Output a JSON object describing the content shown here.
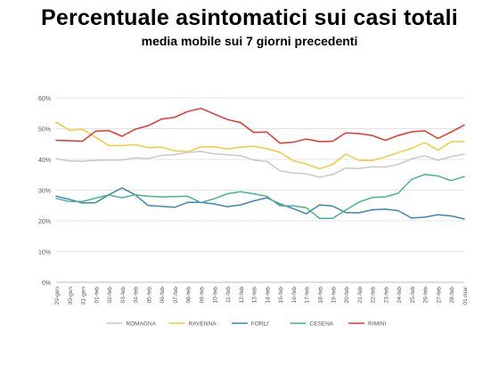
{
  "page": {
    "title": "Percentuale asintomatici sui casi totali",
    "subtitle": "media mobile sui 7 giorni precedenti"
  },
  "chart_data": {
    "type": "line",
    "title": "Percentuale asintomatici sui casi totali",
    "subtitle": "media mobile sui 7 giorni precedenti",
    "xlabel": "",
    "ylabel": "",
    "ylim": [
      0,
      60
    ],
    "yticks": [
      "0%",
      "10%",
      "20%",
      "30%",
      "40%",
      "50%",
      "60%"
    ],
    "grid": true,
    "legend_position": "bottom",
    "x": [
      "29-gen",
      "30-gen",
      "31-gen",
      "01-feb",
      "02-feb",
      "03-feb",
      "04-feb",
      "05-feb",
      "06-feb",
      "07-feb",
      "08-feb",
      "09-feb",
      "10-feb",
      "11-feb",
      "12-feb",
      "13-feb",
      "14-feb",
      "15-feb",
      "16-feb",
      "17-feb",
      "18-feb",
      "19-feb",
      "20-feb",
      "21-feb",
      "22-feb",
      "23-feb",
      "24-feb",
      "25-feb",
      "26-feb",
      "27-feb",
      "28-feb",
      "01-mar"
    ],
    "series": [
      {
        "name": "ROMAGNA",
        "color": "#c8c8c8",
        "values": [
          40.2,
          39.5,
          39.4,
          39.7,
          39.8,
          39.8,
          40.5,
          40.3,
          41.3,
          41.5,
          42.3,
          42.6,
          41.8,
          41.5,
          41.2,
          39.8,
          39.3,
          36.3,
          35.6,
          35.3,
          34.2,
          35.1,
          37.2,
          37.0,
          37.6,
          37.5,
          38.4,
          40.2,
          41.2,
          39.7,
          40.9,
          41.7
        ]
      },
      {
        "name": "RAVENNA",
        "color": "#f0cc3c",
        "values": [
          52.1,
          49.5,
          49.8,
          47.2,
          44.5,
          44.5,
          44.8,
          43.8,
          44.0,
          42.8,
          42.5,
          44.1,
          44.1,
          43.4,
          44.0,
          44.3,
          43.5,
          42.3,
          39.6,
          38.5,
          36.9,
          38.4,
          41.7,
          39.7,
          39.6,
          40.8,
          42.2,
          43.6,
          45.5,
          43.0,
          45.8,
          45.8
        ]
      },
      {
        "name": "FORLI'",
        "color": "#3e86b4",
        "values": [
          28.0,
          27.0,
          25.8,
          25.9,
          28.5,
          30.7,
          28.5,
          25.0,
          24.7,
          24.4,
          26.0,
          26.0,
          25.5,
          24.6,
          25.2,
          26.5,
          27.5,
          25.5,
          24.0,
          22.3,
          25.2,
          24.8,
          22.7,
          22.6,
          23.6,
          23.8,
          23.3,
          20.9,
          21.2,
          22.0,
          21.6,
          20.6
        ]
      },
      {
        "name": "CESENA",
        "color": "#46b48c",
        "values": [
          27.3,
          26.3,
          26.3,
          27.4,
          28.4,
          27.5,
          28.5,
          28.0,
          27.8,
          27.9,
          28.0,
          25.9,
          27.2,
          28.8,
          29.5,
          28.8,
          28.0,
          24.9,
          24.9,
          24.3,
          20.8,
          20.8,
          23.5,
          26.1,
          27.6,
          27.8,
          29.0,
          33.5,
          35.1,
          34.6,
          33.1,
          34.4
        ]
      },
      {
        "name": "RIMINI",
        "color": "#e8332c",
        "values": [
          46.2,
          46.1,
          45.9,
          49.2,
          49.4,
          47.5,
          49.8,
          51.0,
          53.1,
          53.7,
          55.6,
          56.6,
          54.8,
          53.0,
          52.0,
          48.8,
          48.9,
          45.3,
          45.6,
          46.6,
          45.8,
          45.9,
          48.6,
          48.4,
          47.8,
          46.2,
          47.8,
          49.0,
          49.3,
          46.8,
          48.9,
          51.2
        ]
      }
    ]
  }
}
